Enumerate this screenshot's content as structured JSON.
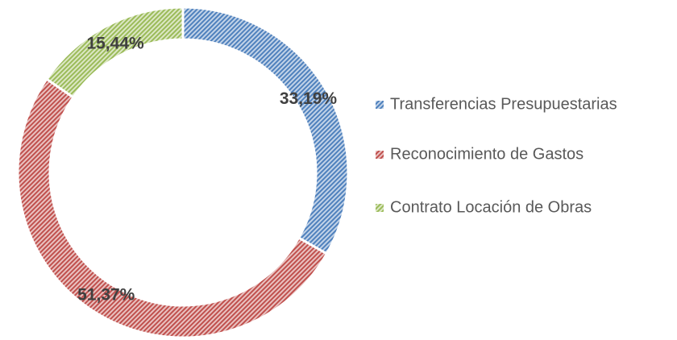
{
  "chart_data": {
    "type": "donut",
    "categories": [
      "Transferencias Presupuestarias",
      "Reconocimiento de Gastos",
      "Contrato Locación de Obras"
    ],
    "values": [
      33.19,
      51.37,
      15.44
    ],
    "value_labels": [
      "33,19%",
      "51,37%",
      "15,44%"
    ],
    "colors": [
      "#4f81bd",
      "#c0504d",
      "#9bbb59"
    ],
    "legend": "right"
  }
}
